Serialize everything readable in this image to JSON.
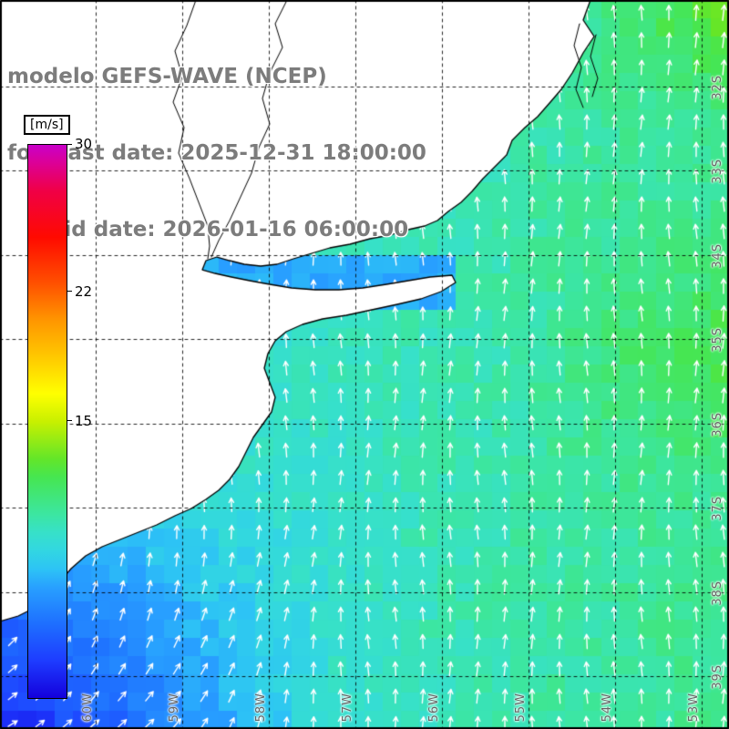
{
  "header": {
    "line1": "modelo GEFS-WAVE (NCEP)",
    "line2": "forecast date: 2025-12-31 18:00:00",
    "line3": "   valid date: 2026-01-16 06:00:00"
  },
  "colorbar": {
    "unit_label": "[m/s]",
    "range": [
      0,
      30
    ],
    "ticks": [
      {
        "label": "30",
        "value": 30
      },
      {
        "label": "22",
        "value": 22
      },
      {
        "label": "15",
        "value": 15
      }
    ],
    "stops": [
      {
        "v": 0,
        "c": "#1400dc"
      },
      {
        "v": 2,
        "c": "#1e3cff"
      },
      {
        "v": 4,
        "c": "#1e6eff"
      },
      {
        "v": 6,
        "c": "#28a0ff"
      },
      {
        "v": 7,
        "c": "#2dc3f5"
      },
      {
        "v": 8,
        "c": "#32d7e1"
      },
      {
        "v": 9,
        "c": "#37e1c8"
      },
      {
        "v": 10,
        "c": "#3ce6a0"
      },
      {
        "v": 11,
        "c": "#41e678"
      },
      {
        "v": 12,
        "c": "#46e650"
      },
      {
        "v": 13,
        "c": "#64e628"
      },
      {
        "v": 15,
        "c": "#c8f000"
      },
      {
        "v": 16.5,
        "c": "#ffff00"
      },
      {
        "v": 18.5,
        "c": "#ffc800"
      },
      {
        "v": 20.5,
        "c": "#ff9600"
      },
      {
        "v": 22.5,
        "c": "#ff5000"
      },
      {
        "v": 25,
        "c": "#ff0a00"
      },
      {
        "v": 27.5,
        "c": "#f00046"
      },
      {
        "v": 29,
        "c": "#dc0096"
      },
      {
        "v": 30,
        "c": "#c800c8"
      }
    ]
  },
  "axes": {
    "lat_labels": [
      "32S",
      "33S",
      "34S",
      "35S",
      "36S",
      "37S",
      "38S",
      "39S"
    ],
    "lon_labels": [
      "60W",
      "59W",
      "58W",
      "57W",
      "56W",
      "55W",
      "54W",
      "53W"
    ],
    "label_color": "#666666",
    "grid_color": "#000000"
  },
  "map": {
    "land_color": "#ffffff",
    "coast_color": "#000000",
    "arrow_color": "#ffffff"
  },
  "chart_data": {
    "type": "heatmap",
    "title": "modelo GEFS-WAVE (NCEP)",
    "forecast_date": "2025-12-31 18:00:00",
    "valid_date": "2026-01-16 06:00:00",
    "field": "wind speed shaded with white direction arrows over the Rio de la Plata / SW Atlantic",
    "unit": "m/s",
    "colorbar_range": [
      0,
      30
    ],
    "colorbar_ticks": [
      30,
      22,
      15
    ],
    "x_tick_labels": [
      "60W",
      "59W",
      "58W",
      "57W",
      "56W",
      "55W",
      "54W",
      "53W"
    ],
    "y_tick_labels": [
      "32S",
      "33S",
      "34S",
      "35S",
      "36S",
      "37S",
      "38S",
      "39S"
    ],
    "approx_field_values_mps": {
      "open_ocean_center": 8.5,
      "southwest_corner": 4,
      "east_edge": 10.5,
      "green_patches_east_and_northeast": 12,
      "rio_de_la_plata_estuary": 6.5
    },
    "arrow_direction": "predominantly toward the north; veering toward east-northeast in the southwest corner"
  }
}
